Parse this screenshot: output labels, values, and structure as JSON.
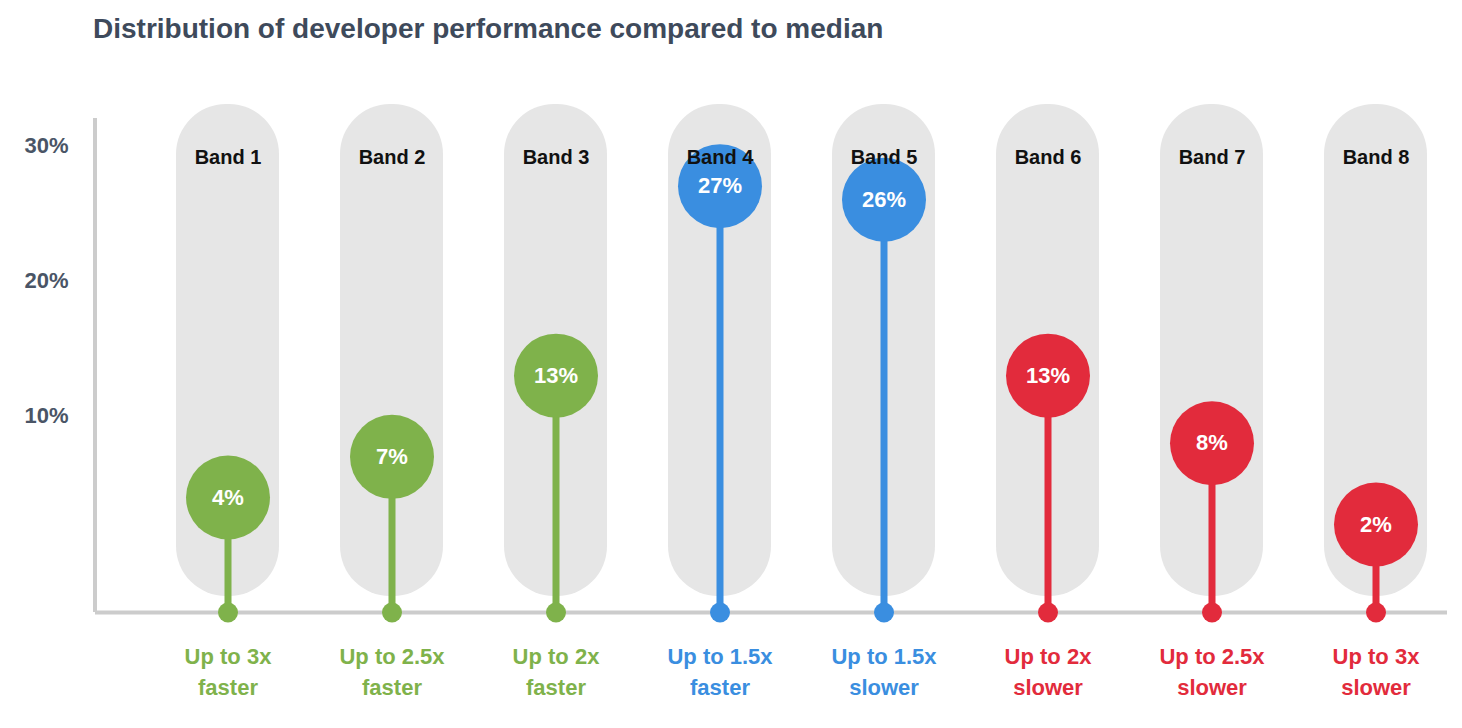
{
  "chart_data": {
    "type": "lollipop",
    "title": "Distribution of developer performance compared to median",
    "categories": [
      "Band 1",
      "Band 2",
      "Band 3",
      "Band 4",
      "Band 5",
      "Band 6",
      "Band 7",
      "Band 8"
    ],
    "values": [
      4,
      7,
      13,
      27,
      26,
      13,
      8,
      2
    ],
    "value_labels": [
      "4%",
      "7%",
      "13%",
      "27%",
      "26%",
      "13%",
      "8%",
      "2%"
    ],
    "data_labels": true,
    "descriptions": [
      "Up to 3x faster",
      "Up to 2.5x faster",
      "Up to 2x faster",
      "Up to 1.5x faster",
      "Up to 1.5x slower",
      "Up to 2x slower",
      "Up to 2.5x slower",
      "Up to 3x slower"
    ],
    "colors": [
      "#7fb24b",
      "#7fb24b",
      "#7fb24b",
      "#3a8ee0",
      "#3a8ee0",
      "#e22b3c",
      "#e22b3c",
      "#e22b3c"
    ],
    "ylim": [
      -4.5,
      32
    ],
    "yticks": [
      {
        "value": 10,
        "label": "10%"
      },
      {
        "value": 20,
        "label": "20%"
      },
      {
        "value": 30,
        "label": "30%"
      }
    ],
    "grid": false
  }
}
